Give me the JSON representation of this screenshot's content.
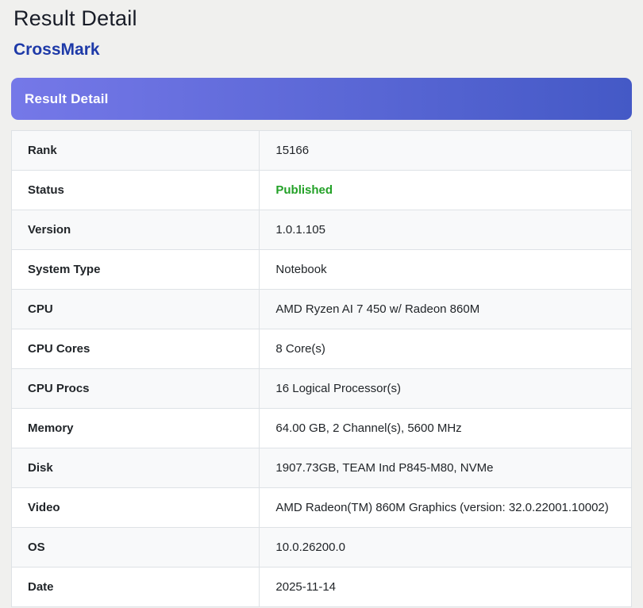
{
  "page": {
    "title": "Result Detail",
    "benchmark_link": "CrossMark",
    "background_color": "#f0f0ee"
  },
  "section": {
    "title": "Result Detail",
    "gradient_start": "#7578e8",
    "gradient_end": "#4459c6",
    "text_color": "#ffffff"
  },
  "colors": {
    "link": "#1e3aa8",
    "status_published": "#23a127",
    "table_border": "#dee2e6",
    "striped_row": "#f8f9fa"
  },
  "table": {
    "rows": [
      {
        "label": "Rank",
        "value": "15166"
      },
      {
        "label": "Status",
        "value": "Published",
        "value_color": "#23a127",
        "value_bold": true
      },
      {
        "label": "Version",
        "value": "1.0.1.105"
      },
      {
        "label": "System Type",
        "value": "Notebook"
      },
      {
        "label": "CPU",
        "value": "AMD Ryzen AI 7 450 w/ Radeon 860M"
      },
      {
        "label": "CPU Cores",
        "value": "8 Core(s)"
      },
      {
        "label": "CPU Procs",
        "value": "16 Logical Processor(s)"
      },
      {
        "label": "Memory",
        "value": "64.00 GB, 2 Channel(s), 5600 MHz"
      },
      {
        "label": "Disk",
        "value": "1907.73GB, TEAM Ind P845-M80, NVMe"
      },
      {
        "label": "Video",
        "value": "AMD Radeon(TM) 860M Graphics (version: 32.0.22001.10002)"
      },
      {
        "label": "OS",
        "value": "10.0.26200.0"
      },
      {
        "label": "Date",
        "value": "2025-11-14"
      }
    ]
  }
}
